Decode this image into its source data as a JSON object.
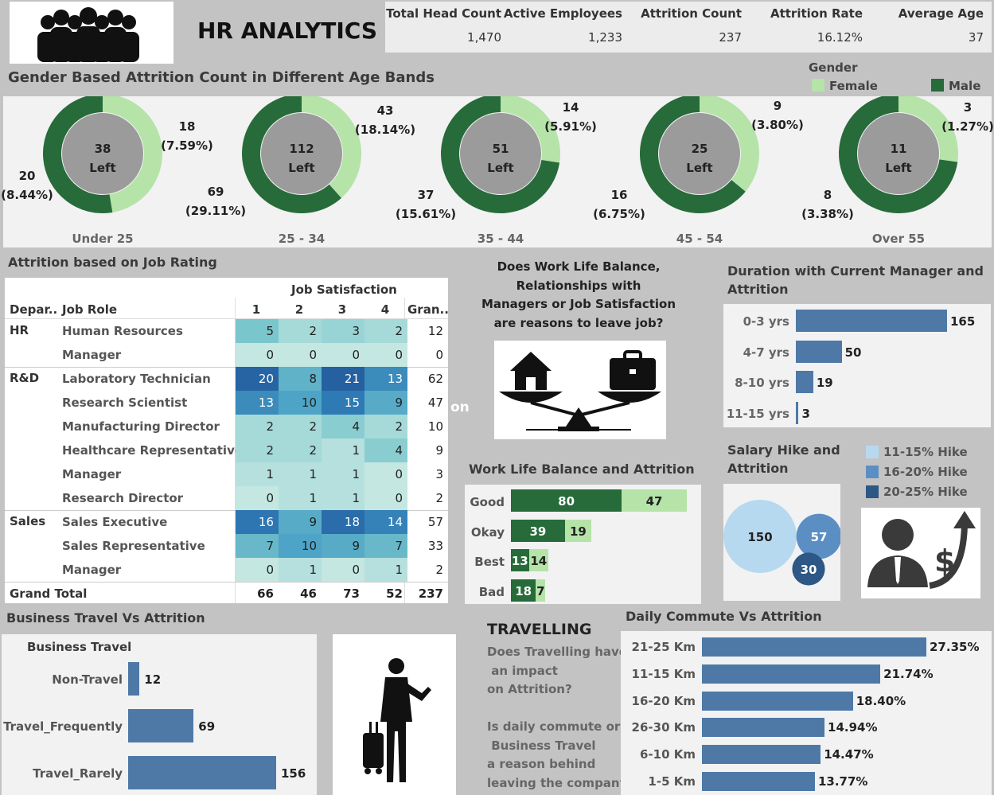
{
  "header": {
    "title": "HR ANALYTICS",
    "kpis": [
      {
        "label": "Total Head Count",
        "value": "1,470"
      },
      {
        "label": "Active Employees",
        "value": "1,233"
      },
      {
        "label": "Attrition Count",
        "value": "237"
      },
      {
        "label": "Attrition Rate",
        "value": "16.12%"
      },
      {
        "label": "Average Age",
        "value": "37"
      }
    ],
    "icon": "people-group-icon"
  },
  "gender_section": {
    "title": "Gender Based Attrition Count in Different Age Bands",
    "legend_title": "Gender",
    "legend": [
      {
        "name": "Female",
        "color": "#b5e3a8"
      },
      {
        "name": "Male",
        "color": "#276b3a"
      }
    ]
  },
  "donuts": [
    {
      "band": "Under 25",
      "total": "38",
      "left_label": "Left",
      "female": 18,
      "female_label": "18",
      "female_pct": "(7.59%)",
      "male": 20,
      "male_label": "20",
      "male_pct": "(8.44%)"
    },
    {
      "band": "25 - 34",
      "total": "112",
      "left_label": "Left",
      "female": 43,
      "female_label": "43",
      "female_pct": "(18.14%)",
      "male": 69,
      "male_label": "69",
      "male_pct": "(29.11%)"
    },
    {
      "band": "35 - 44",
      "total": "51",
      "left_label": "Left",
      "female": 14,
      "female_label": "14",
      "female_pct": "(5.91%)",
      "male": 37,
      "male_label": "37",
      "male_pct": "(15.61%)"
    },
    {
      "band": "45 - 54",
      "total": "25",
      "left_label": "Left",
      "female": 9,
      "female_label": "9",
      "female_pct": "(3.80%)",
      "male": 16,
      "male_label": "16",
      "male_pct": "(6.75%)"
    },
    {
      "band": "Over 55",
      "total": "11",
      "left_label": "Left",
      "female": 3,
      "female_label": "3",
      "female_pct": "(1.27%)",
      "male": 8,
      "male_label": "8",
      "male_pct": "(3.38%)"
    }
  ],
  "job_rating": {
    "title": "Attrition based on Job Rating",
    "col_group": "Job Satisfaction",
    "headers": {
      "dept": "Depar..",
      "role": "Job Role",
      "cols": [
        "1",
        "2",
        "3",
        "4"
      ],
      "total": "Gran.."
    },
    "rows": [
      {
        "dept": "HR",
        "role": "Human Resources",
        "vals": [
          5,
          2,
          3,
          2
        ],
        "total": "12"
      },
      {
        "dept": "",
        "role": "Manager",
        "vals": [
          0,
          0,
          0,
          0
        ],
        "total": "0"
      },
      {
        "dept": "R&D",
        "role": "Laboratory Technician",
        "vals": [
          20,
          8,
          21,
          13
        ],
        "total": "62"
      },
      {
        "dept": "",
        "role": "Research Scientist",
        "vals": [
          13,
          10,
          15,
          9
        ],
        "total": "47"
      },
      {
        "dept": "",
        "role": "Manufacturing Director",
        "vals": [
          2,
          2,
          4,
          2
        ],
        "total": "10"
      },
      {
        "dept": "",
        "role": "Healthcare Representative",
        "vals": [
          2,
          2,
          1,
          4
        ],
        "total": "9"
      },
      {
        "dept": "",
        "role": "Manager",
        "vals": [
          1,
          1,
          1,
          0
        ],
        "total": "3"
      },
      {
        "dept": "",
        "role": "Research Director",
        "vals": [
          0,
          1,
          1,
          0
        ],
        "total": "2"
      },
      {
        "dept": "Sales",
        "role": "Sales Executive",
        "vals": [
          16,
          9,
          18,
          14
        ],
        "total": "57"
      },
      {
        "dept": "",
        "role": "Sales Representative",
        "vals": [
          7,
          10,
          9,
          7
        ],
        "total": "33"
      },
      {
        "dept": "",
        "role": "Manager",
        "vals": [
          0,
          1,
          0,
          1
        ],
        "total": "2"
      }
    ],
    "grand": {
      "label": "Grand Total",
      "vals": [
        "66",
        "46",
        "73",
        "52"
      ],
      "total": "237"
    }
  },
  "wlb_question": {
    "lines": [
      "Does Work Life Balance,",
      "Relationships with",
      "Managers or Job Satisfaction",
      "are reasons to leave job?"
    ],
    "stray": "on",
    "icon": "work-life-balance-scale-icon"
  },
  "wlb_chart": {
    "title": "Work Life Balance and Attrition",
    "rows": [
      {
        "label": "Good",
        "male": 80,
        "female": 47
      },
      {
        "label": "Okay",
        "male": 39,
        "female": 19
      },
      {
        "label": "Best",
        "male": 13,
        "female": 14
      },
      {
        "label": "Bad",
        "male": 18,
        "female": 7
      }
    ]
  },
  "manager_chart": {
    "title_lines": [
      "Duration with Current Manager and",
      "Attrition"
    ],
    "rows": [
      {
        "label": "0-3 yrs",
        "value": 165
      },
      {
        "label": "4-7 yrs",
        "value": 50
      },
      {
        "label": "8-10 yrs",
        "value": 19
      },
      {
        "label": "11-15 yrs",
        "value": 3
      }
    ]
  },
  "salary": {
    "title_lines": [
      "Salary Hike and",
      "Attrition"
    ],
    "legend": [
      {
        "name": "11-15% Hike",
        "color": "#b7d9ef"
      },
      {
        "name": "16-20% Hike",
        "color": "#5b8fc4"
      },
      {
        "name": "20-25% Hike",
        "color": "#2d5784"
      }
    ],
    "bubbles": [
      {
        "value": 150,
        "label": "150"
      },
      {
        "value": 57,
        "label": "57"
      },
      {
        "value": 30,
        "label": "30"
      }
    ],
    "icon": "salary-growth-icon"
  },
  "business_travel": {
    "title": "Business Travel Vs Attrition",
    "inner_title": "Business Travel",
    "rows": [
      {
        "label": "Non-Travel",
        "value": 12
      },
      {
        "label": "Travel_Frequently",
        "value": 69
      },
      {
        "label": "Travel_Rarely",
        "value": 156
      }
    ],
    "icon": "traveler-with-suitcase-icon"
  },
  "travelling": {
    "heading": "TRAVELLING",
    "lines1": [
      "Does Travelling have",
      " an impact",
      "on Attrition?"
    ],
    "lines2": [
      "Is daily commute or",
      " Business Travel",
      "a reason behind",
      "leaving the company?"
    ]
  },
  "commute": {
    "title": "Daily Commute Vs Attrition",
    "rows": [
      {
        "label": "21-25 Km",
        "value": 27.35,
        "text": "27.35%"
      },
      {
        "label": "11-15 Km",
        "value": 21.74,
        "text": "21.74%"
      },
      {
        "label": "16-20 Km",
        "value": 18.4,
        "text": "18.40%"
      },
      {
        "label": "26-30 Km",
        "value": 14.94,
        "text": "14.94%"
      },
      {
        "label": "6-10 Km",
        "value": 14.47,
        "text": "14.47%"
      },
      {
        "label": "1-5 Km",
        "value": 13.77,
        "text": "13.77%"
      }
    ]
  },
  "chart_data": [
    {
      "type": "pie",
      "title": "Gender Based Attrition Count in Different Age Bands",
      "categories": [
        "Under 25",
        "25 - 34",
        "35 - 44",
        "45 - 54",
        "Over 55"
      ],
      "series": [
        {
          "name": "Female",
          "values": [
            18,
            43,
            14,
            9,
            3
          ]
        },
        {
          "name": "Male",
          "values": [
            20,
            69,
            37,
            16,
            8
          ]
        }
      ]
    },
    {
      "type": "heatmap",
      "title": "Attrition based on Job Rating",
      "xlabel": "Job Satisfaction",
      "x": [
        "1",
        "2",
        "3",
        "4"
      ]
    },
    {
      "type": "bar",
      "title": "Work Life Balance and Attrition",
      "categories": [
        "Good",
        "Okay",
        "Best",
        "Bad"
      ],
      "series": [
        {
          "name": "Male",
          "values": [
            80,
            39,
            13,
            18
          ]
        },
        {
          "name": "Female",
          "values": [
            47,
            19,
            14,
            7
          ]
        }
      ]
    },
    {
      "type": "bar",
      "title": "Duration with Current Manager and Attrition",
      "categories": [
        "0-3 yrs",
        "4-7 yrs",
        "8-10 yrs",
        "11-15 yrs"
      ],
      "values": [
        165,
        50,
        19,
        3
      ]
    },
    {
      "type": "scatter",
      "title": "Salary Hike and Attrition",
      "categories": [
        "11-15% Hike",
        "16-20% Hike",
        "20-25% Hike"
      ],
      "values": [
        150,
        57,
        30
      ]
    },
    {
      "type": "bar",
      "title": "Business Travel Vs Attrition",
      "categories": [
        "Non-Travel",
        "Travel_Frequently",
        "Travel_Rarely"
      ],
      "values": [
        12,
        69,
        156
      ]
    },
    {
      "type": "bar",
      "title": "Daily Commute Vs Attrition",
      "categories": [
        "21-25 Km",
        "11-15 Km",
        "16-20 Km",
        "26-30 Km",
        "6-10 Km",
        "1-5 Km"
      ],
      "values": [
        27.35,
        21.74,
        18.4,
        14.94,
        14.47,
        13.77
      ]
    }
  ]
}
